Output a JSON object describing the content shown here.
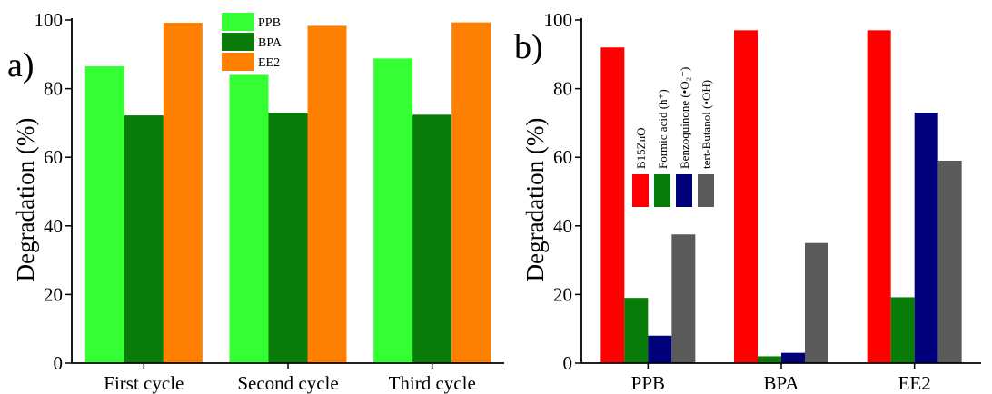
{
  "chart_data": [
    {
      "panel_label": "a)",
      "type": "bar",
      "ylabel": "Degradation (%)",
      "xlabel": "",
      "ylim": [
        0,
        100
      ],
      "yticks": [
        "0",
        "20",
        "40",
        "60",
        "80",
        "100"
      ],
      "categories": [
        "First cycle",
        "Second cycle",
        "Third cycle"
      ],
      "series": [
        {
          "name": "PPB",
          "color": "#33ff33",
          "values": [
            86.5,
            84,
            88.8
          ]
        },
        {
          "name": "BPA",
          "color": "#087b08",
          "values": [
            72.2,
            73,
            72.4
          ]
        },
        {
          "name": "EE2",
          "color": "#ff8000",
          "values": [
            99.2,
            98.3,
            99.3
          ]
        }
      ],
      "legend_placement": "top-center",
      "grid": false
    },
    {
      "panel_label": "b)",
      "type": "bar",
      "ylabel": "Degradation (%)",
      "xlabel": "",
      "ylim": [
        0,
        100
      ],
      "yticks": [
        "0",
        "20",
        "40",
        "60",
        "80",
        "100"
      ],
      "categories": [
        "PPB",
        "BPA",
        "EE2"
      ],
      "series": [
        {
          "name": "B15ZnO",
          "color": "#ff0000",
          "values": [
            92,
            97,
            97
          ]
        },
        {
          "name": "Formic acid (h⁺)",
          "color": "#087b08",
          "values": [
            19,
            2,
            19.2
          ]
        },
        {
          "name": "Benzoquinone (•O₂⁻)",
          "color": "#00007b",
          "values": [
            8,
            3,
            73
          ]
        },
        {
          "name": "tert-Butanol (•OH)",
          "color": "#5a5a5a",
          "values": [
            37.5,
            35,
            59
          ]
        }
      ],
      "legend_placement": "top-left, rotated labels",
      "grid": false
    }
  ]
}
